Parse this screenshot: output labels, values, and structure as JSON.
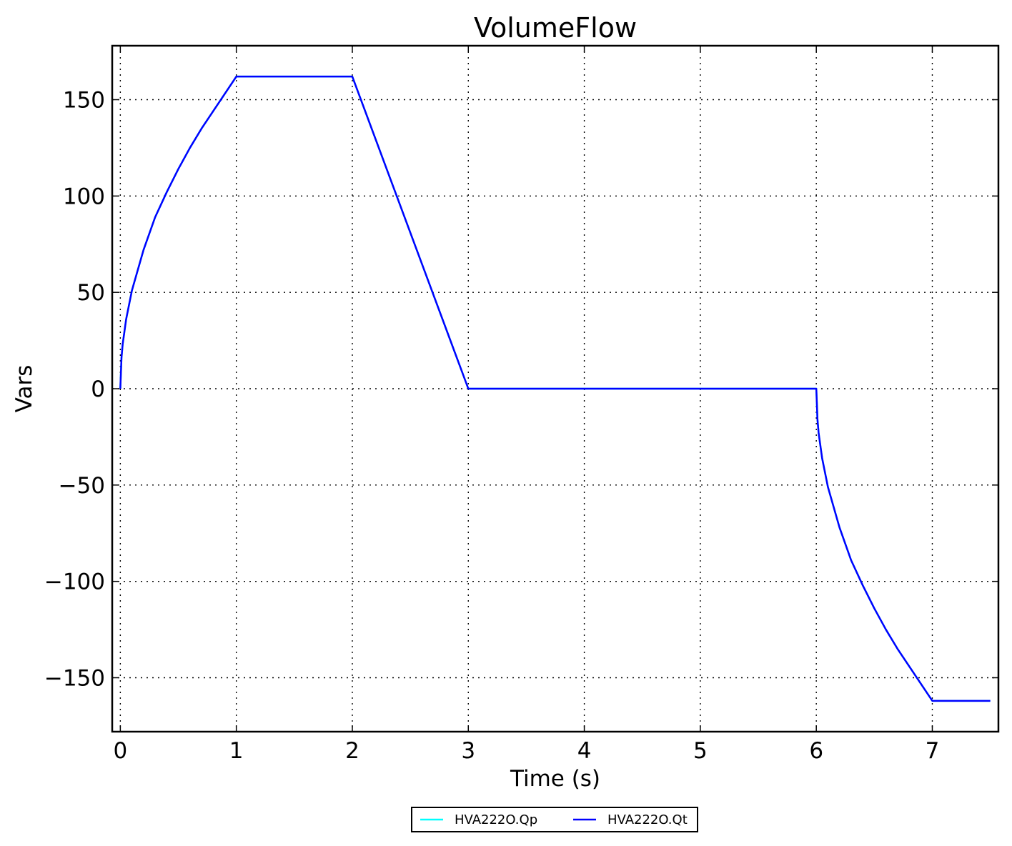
{
  "chart_data": {
    "type": "line",
    "title": "VolumeFlow",
    "xlabel": "Time (s)",
    "ylabel": "Vars",
    "xlim": [
      -0.07,
      7.57
    ],
    "ylim": [
      -178,
      178
    ],
    "xticks": [
      0,
      1,
      2,
      3,
      4,
      5,
      6,
      7
    ],
    "xtick_labels": [
      "0",
      "1",
      "2",
      "3",
      "4",
      "5",
      "6",
      "7"
    ],
    "yticks": [
      150,
      100,
      50,
      0,
      -50,
      -100,
      -150
    ],
    "ytick_labels": [
      "150",
      "100",
      "50",
      "0",
      "−50",
      "−100",
      "−150"
    ],
    "grid": true,
    "legend_position": "bottom-center",
    "series": [
      {
        "name": "HVA222O.Qp",
        "color": "#00ffff",
        "x": [
          0,
          0.01,
          0.02,
          0.05,
          0.1,
          0.2,
          0.3,
          0.4,
          0.5,
          0.6,
          0.7,
          0.8,
          0.9,
          1.0,
          2.0,
          3.0,
          6.0,
          6.01,
          6.02,
          6.05,
          6.1,
          6.2,
          6.3,
          6.4,
          6.5,
          6.6,
          6.7,
          6.8,
          6.9,
          7.0,
          7.5
        ],
        "y": [
          0,
          16,
          23,
          36,
          51,
          72,
          89,
          102,
          114,
          125,
          135,
          144,
          153,
          162,
          162,
          0,
          0,
          -16,
          -23,
          -36,
          -51,
          -72,
          -89,
          -102,
          -114,
          -125,
          -135,
          -144,
          -153,
          -162,
          -162
        ]
      },
      {
        "name": "HVA222O.Qt",
        "color": "#0000ff",
        "x": [
          0,
          0.01,
          0.02,
          0.05,
          0.1,
          0.2,
          0.3,
          0.4,
          0.5,
          0.6,
          0.7,
          0.8,
          0.9,
          1.0,
          2.0,
          3.0,
          6.0,
          6.01,
          6.02,
          6.05,
          6.1,
          6.2,
          6.3,
          6.4,
          6.5,
          6.6,
          6.7,
          6.8,
          6.9,
          7.0,
          7.5
        ],
        "y": [
          0,
          16,
          23,
          36,
          51,
          72,
          89,
          102,
          114,
          125,
          135,
          144,
          153,
          162,
          162,
          0,
          0,
          -16,
          -23,
          -36,
          -51,
          -72,
          -89,
          -102,
          -114,
          -125,
          -135,
          -144,
          -153,
          -162,
          -162
        ]
      }
    ]
  }
}
